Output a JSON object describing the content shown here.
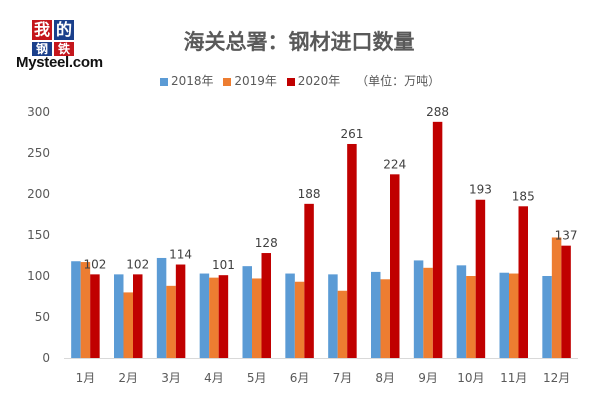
{
  "logo": {
    "chars": [
      "我",
      "的",
      "钢",
      "铁"
    ],
    "colors": [
      "#c4161c",
      "#1a3f8b",
      "#1a3f8b",
      "#c4161c"
    ],
    "text": "Mysteel.com"
  },
  "title": "海关总署：钢材进口数量",
  "legend": {
    "unit_note": "（单位：万吨）"
  },
  "chart_data": {
    "type": "bar",
    "title": "海关总署：钢材进口数量",
    "unit": "（单位：万吨）",
    "categories": [
      "1月",
      "2月",
      "3月",
      "4月",
      "5月",
      "6月",
      "7月",
      "8月",
      "9月",
      "10月",
      "11月",
      "12月"
    ],
    "series": [
      {
        "name": "2018年",
        "color": "#5b9bd5",
        "values": [
          118,
          102,
          122,
          103,
          112,
          103,
          102,
          105,
          119,
          113,
          104,
          100
        ]
      },
      {
        "name": "2019年",
        "color": "#ed7d31",
        "values": [
          117,
          80,
          88,
          98,
          97,
          93,
          82,
          96,
          110,
          100,
          103,
          147
        ]
      },
      {
        "name": "2020年",
        "color": "#c00000",
        "values": [
          102,
          102,
          114,
          101,
          128,
          188,
          261,
          224,
          288,
          193,
          185,
          137
        ]
      }
    ],
    "data_labels_series": "2020年",
    "ylim": [
      0,
      300
    ],
    "yticks": [
      0,
      50,
      100,
      150,
      200,
      250,
      300
    ],
    "grid": false,
    "legend_position": "top"
  }
}
